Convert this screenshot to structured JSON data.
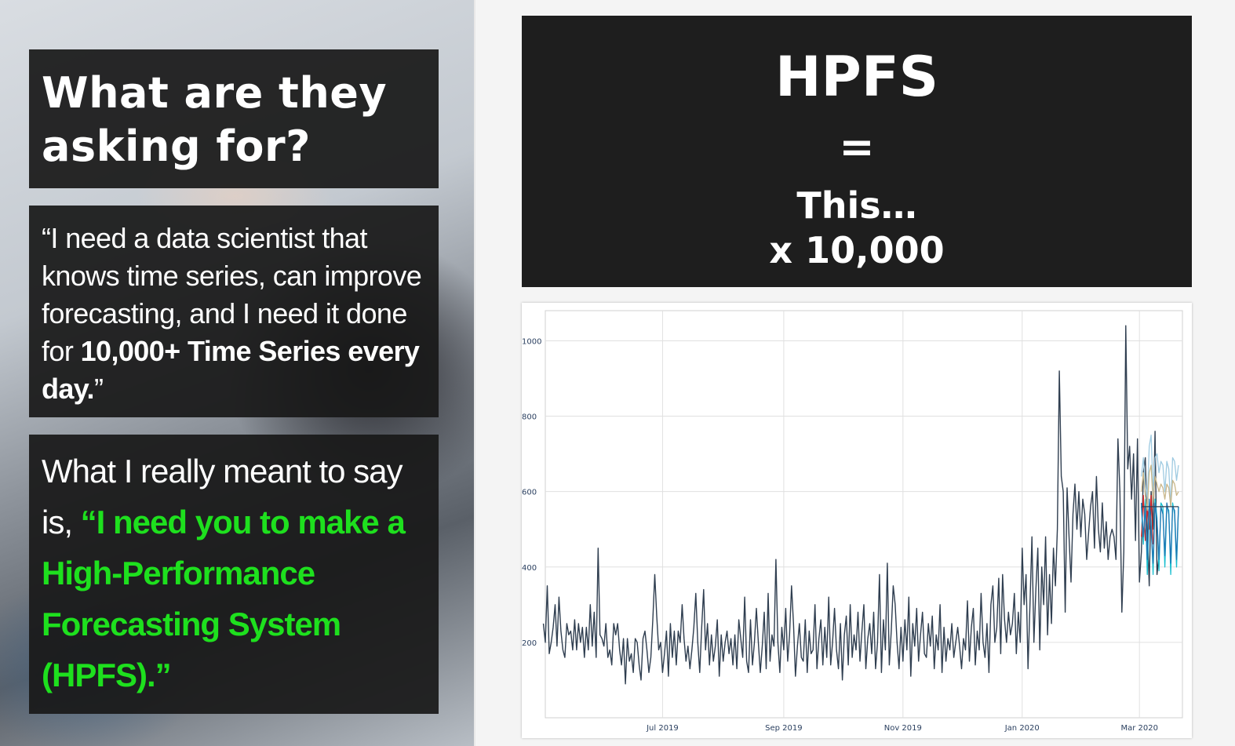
{
  "left": {
    "title": "What are they asking for?",
    "quote": {
      "part1": "“I need a data scientist that knows time series, can improve forecasting, and I need it done for ",
      "bold": "10,000+ Time Series every day.",
      "end": "”"
    },
    "meant": {
      "lead": "What I really meant to say is, ",
      "green": "“I need you to make a High-Performance Forecasting System (HPFS).”"
    }
  },
  "right": {
    "title": "HPFS",
    "equals": "=",
    "this": "This…",
    "times": "x 10,000"
  },
  "chart_data": {
    "type": "line",
    "title": "",
    "xlabel": "",
    "ylabel": "",
    "x_ticks": [
      "Jul 2019",
      "Sep 2019",
      "Nov 2019",
      "Jan 2020",
      "Mar 2020"
    ],
    "y_ticks": [
      200,
      400,
      600,
      800,
      1000
    ],
    "ylim": [
      0,
      1080
    ],
    "grid": true,
    "colors": {
      "actual": "#2f3e50",
      "forecast_red": "#d62728",
      "forecast_teal": "#17becf",
      "forecast_blue": "#1f77b4",
      "forecast_light": "#9ecae1",
      "forecast_tan": "#c9b78b"
    },
    "series": [
      {
        "role": "actual",
        "start": "2019-05-01",
        "values": [
          250,
          200,
          350,
          170,
          200,
          240,
          300,
          190,
          320,
          230,
          180,
          160,
          250,
          220,
          230,
          180,
          260,
          180,
          250,
          200,
          240,
          160,
          240,
          180,
          300,
          190,
          280,
          160,
          450,
          220,
          210,
          190,
          250,
          160,
          180,
          140,
          250,
          220,
          250,
          180,
          140,
          210,
          90,
          210,
          150,
          170,
          120,
          210,
          200,
          140,
          100,
          210,
          230,
          180,
          120,
          160,
          260,
          380,
          270,
          180,
          200,
          120,
          170,
          230,
          110,
          250,
          160,
          230,
          140,
          230,
          200,
          300,
          210,
          150,
          190,
          130,
          180,
          240,
          330,
          200,
          120,
          240,
          340,
          180,
          250,
          140,
          220,
          150,
          190,
          260,
          110,
          220,
          150,
          200,
          230,
          170,
          210,
          140,
          220,
          130,
          260,
          210,
          160,
          320,
          150,
          120,
          260,
          140,
          200,
          290,
          200,
          120,
          190,
          280,
          130,
          330,
          150,
          220,
          190,
          420,
          200,
          120,
          240,
          180,
          290,
          150,
          220,
          350,
          250,
          110,
          190,
          250,
          160,
          150,
          260,
          120,
          230,
          170,
          180,
          300,
          130,
          210,
          260,
          140,
          240,
          160,
          320,
          140,
          200,
          290,
          180,
          130,
          250,
          100,
          220,
          270,
          140,
          300,
          160,
          220,
          180,
          280,
          150,
          230,
          300,
          130,
          210,
          250,
          170,
          280,
          130,
          200,
          380,
          120,
          260,
          180,
          410,
          140,
          230,
          350,
          300,
          200,
          130,
          240,
          150,
          260,
          180,
          320,
          110,
          250,
          190,
          290,
          150,
          220,
          280,
          170,
          160,
          250,
          190,
          270,
          130,
          220,
          180,
          300,
          120,
          240,
          150,
          210,
          180,
          250,
          160,
          200,
          240,
          190,
          130,
          210,
          180,
          310,
          150,
          240,
          290,
          140,
          230,
          180,
          330,
          200,
          160,
          250,
          120,
          300,
          350,
          200,
          240,
          370,
          170,
          380,
          260,
          200,
          280,
          220,
          250,
          330,
          170,
          280,
          200,
          450,
          300,
          380,
          130,
          300,
          480,
          200,
          340,
          450,
          180,
          400,
          300,
          480,
          220,
          380,
          250,
          450,
          350,
          500,
          920,
          640,
          600,
          280,
          610,
          480,
          360,
          540,
          620,
          500,
          600,
          480,
          580,
          540,
          420,
          490,
          560,
          600,
          450,
          640,
          500,
          440,
          570,
          450,
          520,
          420,
          480,
          500,
          480,
          420,
          740,
          600,
          280,
          440,
          1040,
          660,
          720,
          580,
          700,
          470,
          740,
          360,
          440,
          650,
          690,
          500,
          350,
          600,
          500,
          760,
          380,
          430
        ]
      },
      {
        "role": "forecast_red",
        "start": "2020-03-02",
        "values": [
          480,
          590,
          470,
          560,
          500,
          590,
          460
        ]
      },
      {
        "role": "forecast_teal",
        "start": "2020-03-02",
        "values": [
          560,
          460,
          580,
          380,
          560,
          520,
          380,
          580,
          530,
          390,
          570,
          560,
          400,
          560,
          550,
          380,
          570,
          540,
          400,
          560
        ]
      },
      {
        "role": "forecast_blue",
        "start": "2020-03-02",
        "values": [
          570,
          480,
          560,
          420,
          580,
          500,
          410,
          570,
          520,
          420,
          560,
          540,
          430,
          570,
          540,
          410,
          560,
          550,
          420,
          560
        ]
      },
      {
        "role": "forecast_light",
        "start": "2020-03-02",
        "values": [
          640,
          690,
          620,
          580,
          720,
          750,
          600,
          690,
          700,
          650,
          680,
          670,
          600,
          680,
          660,
          560,
          690,
          680,
          630,
          670
        ]
      },
      {
        "role": "forecast_tan",
        "start": "2020-03-02",
        "values": [
          600,
          650,
          590,
          550,
          650,
          670,
          570,
          640,
          620,
          600,
          620,
          610,
          580,
          620,
          610,
          560,
          630,
          620,
          590,
          600
        ]
      },
      {
        "role": "forecast_flat",
        "start": "2020-03-02",
        "values": [
          560,
          560,
          560,
          560,
          560,
          560,
          560,
          560,
          560,
          560,
          560,
          560,
          560,
          560,
          560,
          560,
          560,
          560,
          560,
          560
        ]
      }
    ]
  }
}
